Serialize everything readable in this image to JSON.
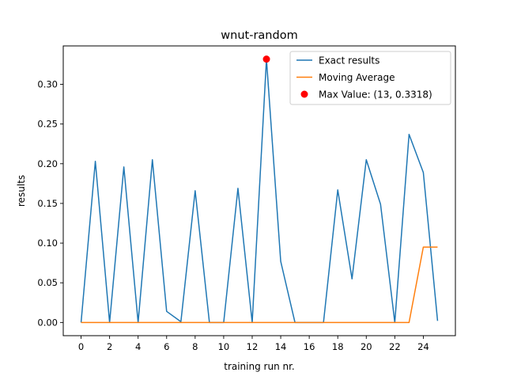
{
  "chart_data": {
    "type": "line",
    "title": "wnut-random",
    "xlabel": "training run nr.",
    "ylabel": "results",
    "xlim": [
      -1.25,
      26.25
    ],
    "ylim": [
      -0.0166,
      0.3484
    ],
    "xticks": [
      0,
      2,
      4,
      6,
      8,
      10,
      12,
      14,
      16,
      18,
      20,
      22,
      24
    ],
    "yticks": [
      0.0,
      0.05,
      0.1,
      0.15,
      0.2,
      0.25,
      0.3
    ],
    "ytick_labels": [
      "0.00",
      "0.05",
      "0.10",
      "0.15",
      "0.20",
      "0.25",
      "0.30"
    ],
    "grid": false,
    "legend_position": "top-right",
    "series": [
      {
        "name": "Exact results",
        "color": "#1f77b4",
        "x": [
          0,
          1,
          2,
          3,
          4,
          5,
          6,
          7,
          8,
          9,
          10,
          11,
          12,
          13,
          14,
          15,
          16,
          17,
          18,
          19,
          20,
          21,
          22,
          23,
          24,
          25
        ],
        "values": [
          0.0,
          0.203,
          0.0,
          0.196,
          0.0,
          0.205,
          0.014,
          0.001,
          0.166,
          0.0,
          0.0,
          0.169,
          0.0,
          0.3318,
          0.077,
          0.0,
          0.0,
          0.0,
          0.167,
          0.055,
          0.205,
          0.149,
          0.0,
          0.237,
          0.189,
          0.002
        ]
      },
      {
        "name": "Moving Average",
        "color": "#ff7f0e",
        "x": [
          0,
          1,
          2,
          3,
          4,
          5,
          6,
          7,
          8,
          9,
          10,
          11,
          12,
          13,
          14,
          15,
          16,
          17,
          18,
          19,
          20,
          21,
          22,
          23,
          24,
          25
        ],
        "values": [
          0,
          0,
          0,
          0,
          0,
          0,
          0,
          0,
          0,
          0,
          0,
          0,
          0,
          0,
          0,
          0,
          0,
          0,
          0,
          0,
          0,
          0,
          0,
          0,
          0.095,
          0.095
        ]
      }
    ],
    "max_point": {
      "label": "Max Value: (13, 0.3318)",
      "x": 13,
      "y": 0.3318,
      "color": "#ff0000"
    }
  }
}
